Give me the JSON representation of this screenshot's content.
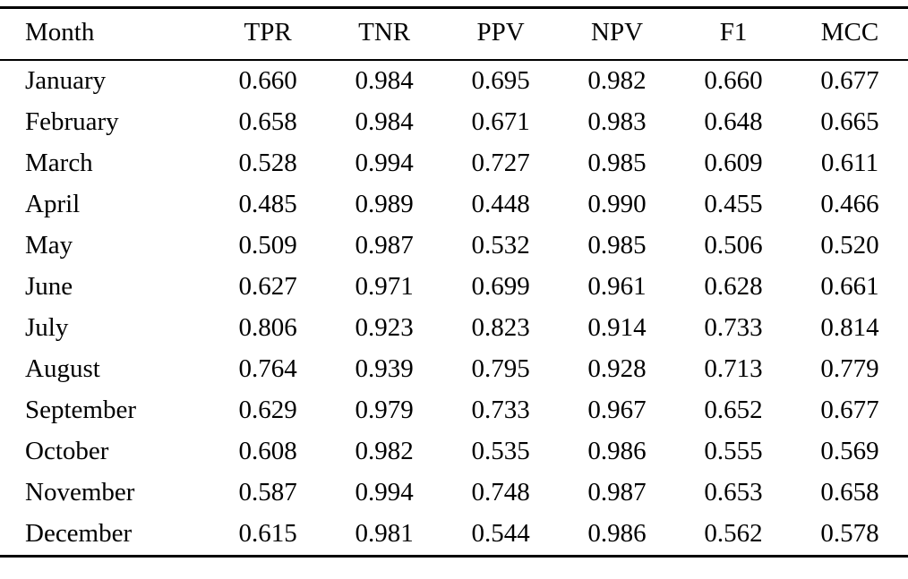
{
  "chart_data": {
    "type": "table",
    "title": "",
    "columns": [
      "Month",
      "TPR",
      "TNR",
      "PPV",
      "NPV",
      "F1",
      "MCC"
    ],
    "rows": [
      [
        "January",
        "0.660",
        "0.984",
        "0.695",
        "0.982",
        "0.660",
        "0.677"
      ],
      [
        "February",
        "0.658",
        "0.984",
        "0.671",
        "0.983",
        "0.648",
        "0.665"
      ],
      [
        "March",
        "0.528",
        "0.994",
        "0.727",
        "0.985",
        "0.609",
        "0.611"
      ],
      [
        "April",
        "0.485",
        "0.989",
        "0.448",
        "0.990",
        "0.455",
        "0.466"
      ],
      [
        "May",
        "0.509",
        "0.987",
        "0.532",
        "0.985",
        "0.506",
        "0.520"
      ],
      [
        "June",
        "0.627",
        "0.971",
        "0.699",
        "0.961",
        "0.628",
        "0.661"
      ],
      [
        "July",
        "0.806",
        "0.923",
        "0.823",
        "0.914",
        "0.733",
        "0.814"
      ],
      [
        "August",
        "0.764",
        "0.939",
        "0.795",
        "0.928",
        "0.713",
        "0.779"
      ],
      [
        "September",
        "0.629",
        "0.979",
        "0.733",
        "0.967",
        "0.652",
        "0.677"
      ],
      [
        "October",
        "0.608",
        "0.982",
        "0.535",
        "0.986",
        "0.555",
        "0.569"
      ],
      [
        "November",
        "0.587",
        "0.994",
        "0.748",
        "0.987",
        "0.653",
        "0.658"
      ],
      [
        "December",
        "0.615",
        "0.981",
        "0.544",
        "0.986",
        "0.562",
        "0.578"
      ]
    ]
  }
}
